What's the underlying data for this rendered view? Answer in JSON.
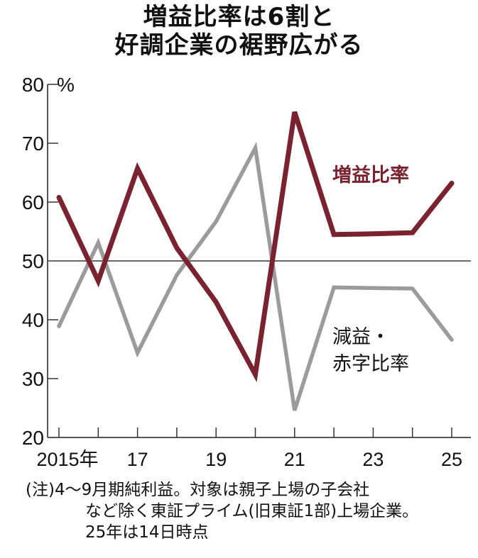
{
  "title": {
    "line1": "増益比率は6割と",
    "line2": "好調企業の裾野広がる"
  },
  "chart_data": {
    "type": "line",
    "title": "増益比率は6割と好調企業の裾野広がる",
    "xlabel": "",
    "ylabel": "%",
    "x": [
      2015,
      2016,
      2017,
      2018,
      2019,
      2020,
      2021,
      2022,
      2023,
      2024,
      2025
    ],
    "x_tick_labels": [
      {
        "x": 2015,
        "label": "2015年"
      },
      {
        "x": 2017,
        "label": "17"
      },
      {
        "x": 2019,
        "label": "19"
      },
      {
        "x": 2021,
        "label": "21"
      },
      {
        "x": 2023,
        "label": "23"
      },
      {
        "x": 2025,
        "label": "25"
      }
    ],
    "y_ticks": [
      20,
      30,
      40,
      50,
      60,
      70,
      80
    ],
    "y_unit": "%",
    "ylim": [
      20,
      80
    ],
    "reference_line": 50,
    "grid": false,
    "series": [
      {
        "name": "増益比率",
        "color": "#7a2230",
        "values": [
          60.8,
          46.6,
          65.7,
          52.2,
          43.0,
          30.7,
          75.3,
          54.5,
          54.6,
          54.8,
          63.2
        ]
      },
      {
        "name": "減益・赤字比率",
        "color": "#9b9b9b",
        "values": [
          38.9,
          53.1,
          34.4,
          47.6,
          56.7,
          69.2,
          24.6,
          45.5,
          45.4,
          45.3,
          36.6
        ]
      }
    ],
    "annotations": [
      {
        "text": "増益比率",
        "series": 0
      },
      {
        "text": "減益・\n赤字比率",
        "series": 1
      }
    ]
  },
  "labels": {
    "series_red_label": "増益比率",
    "series_gray_label_line1": "減益・",
    "series_gray_label_line2": "赤字比率",
    "y_unit": "%"
  },
  "note": {
    "line1": "(注)4～9月期純利益。対象は親子上場の子会社",
    "line2": "など除く東証プライム(旧東証1部)上場企業。",
    "line3": "25年は14日時点"
  }
}
